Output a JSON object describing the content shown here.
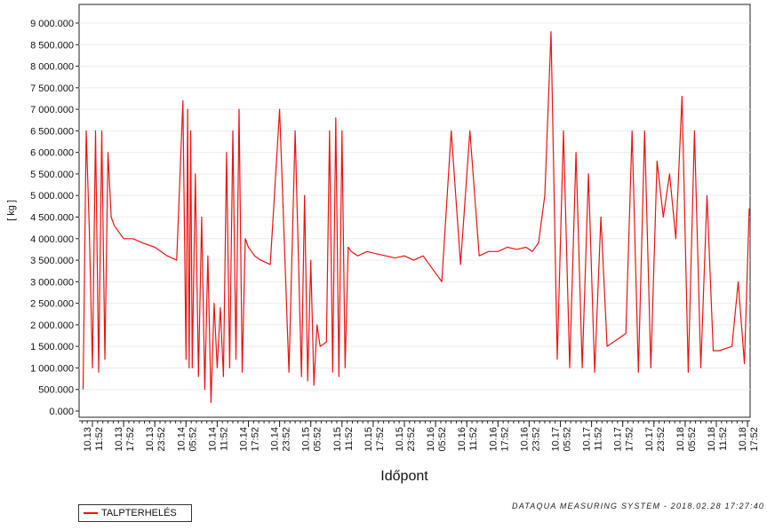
{
  "chart_data": {
    "type": "line",
    "ylabel": "[ kg ]",
    "xlabel": "Időpont",
    "ylim": [
      0,
      9300000
    ],
    "y_ticks": [
      "0.000",
      "500.000",
      "1 000.000",
      "1 500.000",
      "2 000.000",
      "2 500.000",
      "3 000.000",
      "3 500.000",
      "4 000.000",
      "4 500.000",
      "5 000.000",
      "5 500.000",
      "6 000.000",
      "6 500.000",
      "7 000.000",
      "7 500.000",
      "8 000.000",
      "8 500.000",
      "9 000.000"
    ],
    "y_tick_values": [
      0,
      500000,
      1000000,
      1500000,
      2000000,
      2500000,
      3000000,
      3500000,
      4000000,
      4500000,
      5000000,
      5500000,
      6000000,
      6500000,
      7000000,
      7500000,
      8000000,
      8500000,
      9000000
    ],
    "x_ticks": [
      {
        "date": "10.13",
        "time": "11:52"
      },
      {
        "date": "10.13",
        "time": "17:52"
      },
      {
        "date": "10.13",
        "time": "23:52"
      },
      {
        "date": "10.14",
        "time": "05:52"
      },
      {
        "date": "10.14",
        "time": "11:52"
      },
      {
        "date": "10.14",
        "time": "17:52"
      },
      {
        "date": "10.14",
        "time": "23:52"
      },
      {
        "date": "10.15",
        "time": "05:52"
      },
      {
        "date": "10.15",
        "time": "11:52"
      },
      {
        "date": "10.15",
        "time": "17:52"
      },
      {
        "date": "10.15",
        "time": "23:52"
      },
      {
        "date": "10.16",
        "time": "05:52"
      },
      {
        "date": "10.16",
        "time": "11:52"
      },
      {
        "date": "10.16",
        "time": "17:52"
      },
      {
        "date": "10.16",
        "time": "23:52"
      },
      {
        "date": "10.17",
        "time": "05:52"
      },
      {
        "date": "10.17",
        "time": "11:52"
      },
      {
        "date": "10.17",
        "time": "17:52"
      },
      {
        "date": "10.17",
        "time": "23:52"
      },
      {
        "date": "10.18",
        "time": "05:52"
      },
      {
        "date": "10.18",
        "time": "11:52"
      },
      {
        "date": "10.18",
        "time": "17:52"
      }
    ],
    "series": [
      {
        "name": "TALPTERHELÉS",
        "color": "#ee1111",
        "x_ticks_index": [
          -0.3,
          -0.2,
          -0.1,
          0.0,
          0.1,
          0.2,
          0.3,
          0.4,
          0.5,
          0.6,
          0.7,
          0.8,
          1.0,
          1.3,
          1.6,
          2.0,
          2.4,
          2.7,
          2.9,
          3.0,
          3.05,
          3.1,
          3.15,
          3.2,
          3.3,
          3.4,
          3.5,
          3.6,
          3.7,
          3.8,
          3.9,
          4.0,
          4.1,
          4.2,
          4.3,
          4.4,
          4.5,
          4.6,
          4.7,
          4.8,
          4.9,
          5.0,
          5.1,
          5.2,
          5.4,
          5.7,
          6.0,
          6.3,
          6.5,
          6.7,
          6.8,
          6.9,
          7.0,
          7.1,
          7.2,
          7.3,
          7.4,
          7.5,
          7.6,
          7.7,
          7.8,
          7.9,
          8.0,
          8.1,
          8.2,
          8.3,
          8.5,
          8.8,
          9.1,
          9.4,
          9.7,
          10.0,
          10.3,
          10.6,
          10.9,
          11.2,
          11.5,
          11.8,
          12.1,
          12.4,
          12.7,
          13.0,
          13.3,
          13.6,
          13.9,
          14.1,
          14.3,
          14.5,
          14.7,
          14.9,
          15.1,
          15.3,
          15.5,
          15.7,
          15.9,
          16.1,
          16.3,
          16.5,
          16.7,
          16.9,
          17.1,
          17.3,
          17.5,
          17.7,
          17.9,
          18.1,
          18.3,
          18.5,
          18.7,
          18.9,
          19.1,
          19.3,
          19.5,
          19.7,
          19.9,
          20.1,
          20.3,
          20.5,
          20.7,
          20.9,
          21.1,
          21.3
        ],
        "values": [
          500000,
          6500000,
          4200000,
          1000000,
          6500000,
          900000,
          6500000,
          1200000,
          6000000,
          4500000,
          4300000,
          4200000,
          4000000,
          4000000,
          3900000,
          3800000,
          3600000,
          3500000,
          7200000,
          1200000,
          7000000,
          1000000,
          6500000,
          1000000,
          5500000,
          800000,
          4500000,
          500000,
          3600000,
          200000,
          2500000,
          1000000,
          2400000,
          800000,
          6000000,
          1000000,
          6500000,
          1200000,
          7000000,
          900000,
          4000000,
          3800000,
          3700000,
          3600000,
          3500000,
          3400000,
          7000000,
          900000,
          6500000,
          800000,
          5000000,
          700000,
          3500000,
          600000,
          2000000,
          1500000,
          1550000,
          1600000,
          6500000,
          900000,
          6800000,
          800000,
          6500000,
          1000000,
          3800000,
          3700000,
          3600000,
          3700000,
          3650000,
          3600000,
          3550000,
          3600000,
          3500000,
          3600000,
          3300000,
          3000000,
          6500000,
          3400000,
          6500000,
          3600000,
          3700000,
          3700000,
          3800000,
          3750000,
          3800000,
          3700000,
          3900000,
          5000000,
          8800000,
          1200000,
          6500000,
          1000000,
          6000000,
          1000000,
          5500000,
          900000,
          4500000,
          1500000,
          1600000,
          1700000,
          1800000,
          6500000,
          900000,
          6500000,
          1000000,
          5800000,
          4500000,
          5500000,
          4000000,
          7300000,
          900000,
          6500000,
          1000000,
          5000000,
          1400000,
          1400000,
          1450000,
          1500000,
          3000000,
          1100000,
          4700000
        ]
      }
    ]
  },
  "legend": {
    "label": "TALPTERHELÉS"
  },
  "footer": {
    "text": "DATAQUA MEASURING SYSTEM - 2018.02.28 17:27:40"
  }
}
